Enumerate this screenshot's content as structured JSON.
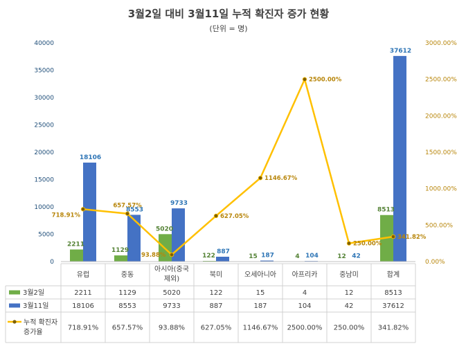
{
  "chart_data": {
    "type": "bar",
    "title": "3월2일 대비 3월11일 누적 확진자 증가 현황",
    "subtitle": "(단위 = 명)",
    "categories": [
      "유럽",
      "중동",
      "아시아(중국제외)",
      "북미",
      "오세아니아",
      "아프리카",
      "중남미",
      "합계"
    ],
    "category_lines": [
      [
        "유럽"
      ],
      [
        "중동"
      ],
      [
        "아시아(중국",
        "제외)"
      ],
      [
        "북미"
      ],
      [
        "오세아니아"
      ],
      [
        "아프리카"
      ],
      [
        "중남미"
      ],
      [
        "합계"
      ]
    ],
    "series": [
      {
        "name": "3월2일",
        "type": "bar",
        "color": "#70ad47",
        "axis": "left",
        "values": [
          2211,
          1129,
          5020,
          122,
          15,
          4,
          12,
          8513
        ],
        "labels": [
          "2211",
          "1129",
          "5020",
          "122",
          "15",
          "4",
          "12",
          "8513"
        ]
      },
      {
        "name": "3월11일",
        "type": "bar",
        "color": "#4472c4",
        "axis": "left",
        "values": [
          18106,
          8553,
          9733,
          887,
          187,
          104,
          42,
          37612
        ],
        "labels": [
          "18106",
          "8553",
          "9733",
          "887",
          "187",
          "104",
          "42",
          "37612"
        ]
      },
      {
        "name": "누적 확진자 증가율",
        "name_lines": [
          "누적 확진자",
          "증가율"
        ],
        "type": "line",
        "color": "#ffc000",
        "marker_color": "#7f6000",
        "axis": "right",
        "values": [
          718.91,
          657.57,
          93.88,
          627.05,
          1146.67,
          2500.0,
          250.0,
          341.82
        ],
        "labels": [
          "718.91%",
          "657.57%",
          "93.88%",
          "627.05%",
          "1146.67%",
          "2500.00%",
          "250.00%",
          "341.82%"
        ]
      }
    ],
    "ylim_left": [
      0,
      40000
    ],
    "yticks_left": [
      "0",
      "5000",
      "10000",
      "15000",
      "20000",
      "25000",
      "30000",
      "35000",
      "40000"
    ],
    "ylim_right": [
      0,
      3000
    ],
    "yticks_right": [
      "0.00%",
      "500.00%",
      "1000.00%",
      "1500.00%",
      "2000.00%",
      "2500.00%",
      "3000.00%"
    ],
    "grid": false,
    "legend": "data-table"
  }
}
